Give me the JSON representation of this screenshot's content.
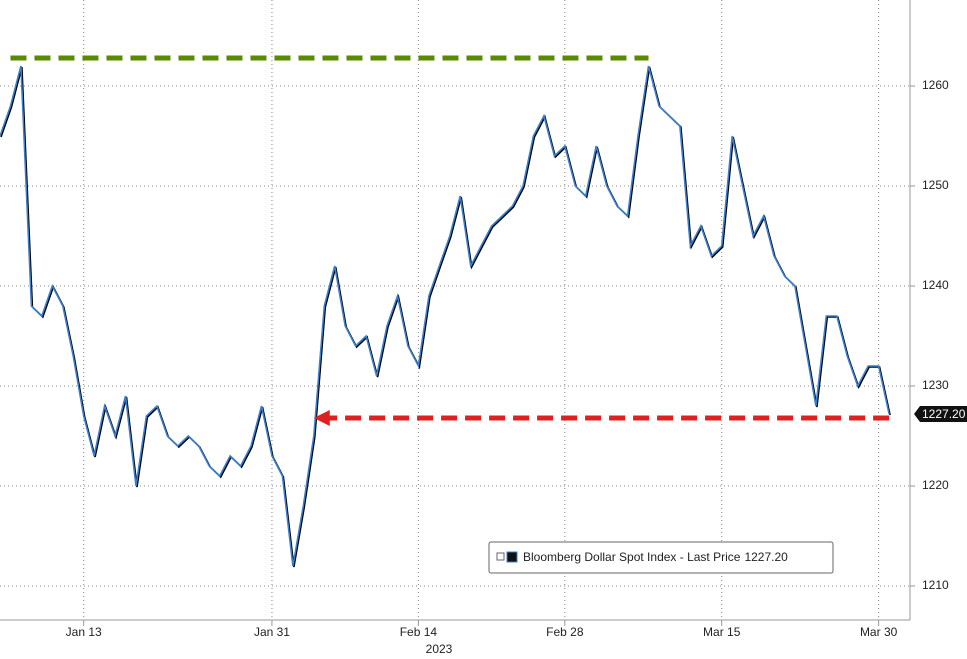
{
  "chart_data": {
    "type": "line",
    "x_label": "2023",
    "x": [
      "2023-01-05",
      "2023-01-06",
      "2023-01-07",
      "2023-01-08",
      "2023-01-09",
      "2023-01-10",
      "2023-01-11",
      "2023-01-12",
      "2023-01-13",
      "2023-01-14",
      "2023-01-15",
      "2023-01-16",
      "2023-01-17",
      "2023-01-18",
      "2023-01-19",
      "2023-01-20",
      "2023-01-21",
      "2023-01-22",
      "2023-01-23",
      "2023-01-24",
      "2023-01-25",
      "2023-01-26",
      "2023-01-27",
      "2023-01-28",
      "2023-01-29",
      "2023-01-30",
      "2023-01-31",
      "2023-02-01",
      "2023-02-02",
      "2023-02-03",
      "2023-02-04",
      "2023-02-05",
      "2023-02-06",
      "2023-02-07",
      "2023-02-08",
      "2023-02-09",
      "2023-02-10",
      "2023-02-11",
      "2023-02-12",
      "2023-02-13",
      "2023-02-14",
      "2023-02-15",
      "2023-02-16",
      "2023-02-17",
      "2023-02-18",
      "2023-02-19",
      "2023-02-20",
      "2023-02-21",
      "2023-02-22",
      "2023-02-23",
      "2023-02-24",
      "2023-02-25",
      "2023-02-26",
      "2023-02-27",
      "2023-02-28",
      "2023-03-01",
      "2023-03-02",
      "2023-03-03",
      "2023-03-04",
      "2023-03-05",
      "2023-03-06",
      "2023-03-07",
      "2023-03-08",
      "2023-03-09",
      "2023-03-10",
      "2023-03-11",
      "2023-03-12",
      "2023-03-13",
      "2023-03-14",
      "2023-03-15",
      "2023-03-16",
      "2023-03-17",
      "2023-03-18",
      "2023-03-19",
      "2023-03-20",
      "2023-03-21",
      "2023-03-22",
      "2023-03-23",
      "2023-03-24",
      "2023-03-25",
      "2023-03-26",
      "2023-03-27",
      "2023-03-28",
      "2023-03-29",
      "2023-03-30",
      "2023-03-31"
    ],
    "series": [
      {
        "name": "Bloomberg Dollar Spot Index - Last Price",
        "color": "#3a7fd0",
        "values": [
          1255,
          1258,
          1262,
          1238,
          1237,
          1240,
          1238,
          1233,
          1227,
          1223,
          1228,
          1225,
          1229,
          1220,
          1227,
          1228,
          1225,
          1224,
          1225,
          1224,
          1222,
          1221,
          1223,
          1222,
          1224,
          1228,
          1223,
          1221,
          1212,
          1218,
          1225,
          1238,
          1242,
          1236,
          1234,
          1235,
          1231,
          1236,
          1239,
          1234,
          1232,
          1239,
          1242,
          1245,
          1249,
          1242,
          1244,
          1246,
          1247,
          1248,
          1250,
          1255,
          1257,
          1253,
          1254,
          1250,
          1249,
          1254,
          1250,
          1248,
          1247,
          1255,
          1262,
          1258,
          1257,
          1256,
          1244,
          1246,
          1243,
          1244,
          1255,
          1250,
          1245,
          1247,
          1243,
          1241,
          1240,
          1234,
          1228,
          1237,
          1237,
          1233,
          1230,
          1232,
          1232,
          1227.2
        ],
        "last_value_label": "1227.20"
      }
    ],
    "xlim": [
      "2023-01-05",
      "2023-04-02"
    ],
    "xticks": [
      {
        "value": "2023-01-13",
        "label": "Jan 13"
      },
      {
        "value": "2023-01-31",
        "label": "Jan 31"
      },
      {
        "value": "2023-02-14",
        "label": "Feb 14"
      },
      {
        "value": "2023-02-28",
        "label": "Feb 28"
      },
      {
        "value": "2023-03-15",
        "label": "Mar 15"
      },
      {
        "value": "2023-03-30",
        "label": "Mar 30"
      }
    ],
    "ylim": [
      1206.6,
      1268.6
    ],
    "yticks": [
      1210,
      1220,
      1230,
      1240,
      1250,
      1260
    ],
    "grid": true,
    "annotations": [
      {
        "color": "#5a8a00",
        "y": 1262.8,
        "x": [
          "2023-01-06",
          "2023-03-08"
        ],
        "arrow": false
      },
      {
        "color": "#e02020",
        "y": 1226.8,
        "x": [
          "2023-03-31",
          "2023-02-04"
        ],
        "arrow": true
      }
    ]
  }
}
